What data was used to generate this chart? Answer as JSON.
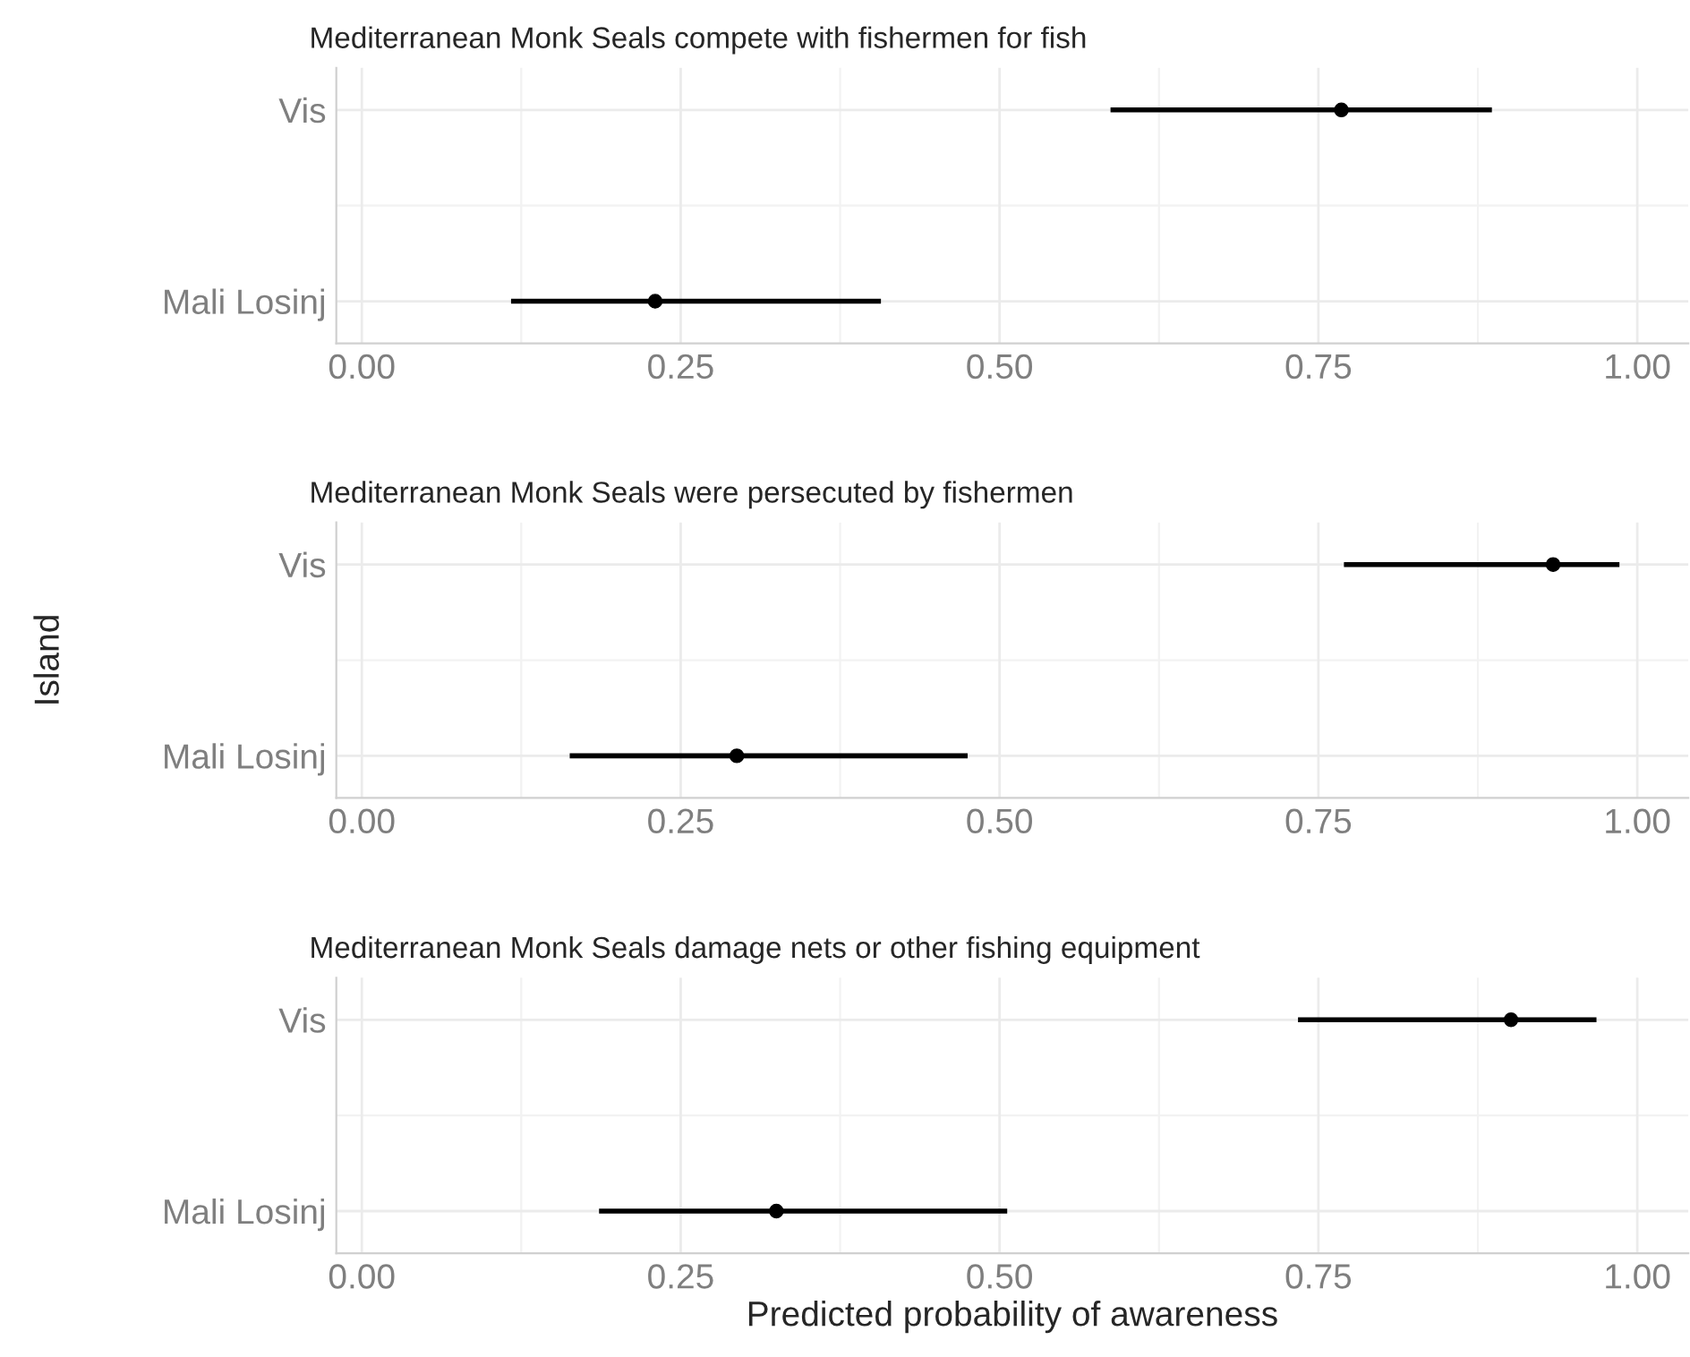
{
  "chart_data": [
    {
      "type": "scatter",
      "orientation": "horizontal",
      "title": "Mediterranean Monk Seals compete with fishermen for fish",
      "categories": [
        "Vis",
        "Mali Losinj"
      ],
      "series": [
        {
          "color": "#000000",
          "values": [
            0.768,
            0.23
          ],
          "errors": [
            [
              0.587,
              0.886
            ],
            [
              0.117,
              0.407
            ]
          ]
        }
      ],
      "xlim": [
        -0.02,
        1.04
      ],
      "xticks": [
        {
          "value": 0,
          "label": "0.00"
        },
        {
          "value": 0.25,
          "label": "0.25"
        },
        {
          "value": 0.5,
          "label": "0.50"
        },
        {
          "value": 0.75,
          "label": "0.75"
        },
        {
          "value": 1,
          "label": "1.00"
        }
      ],
      "grid": true,
      "marker": "circle"
    },
    {
      "type": "scatter",
      "orientation": "horizontal",
      "title": "Mediterranean Monk Seals were persecuted by fishermen",
      "ylabel": "Island",
      "categories": [
        "Vis",
        "Mali Losinj"
      ],
      "series": [
        {
          "color": "#000000",
          "values": [
            0.934,
            0.294
          ],
          "errors": [
            [
              0.77,
              0.986
            ],
            [
              0.163,
              0.475
            ]
          ]
        }
      ],
      "xlim": [
        -0.02,
        1.04
      ],
      "xticks": [
        {
          "value": 0,
          "label": "0.00"
        },
        {
          "value": 0.25,
          "label": "0.25"
        },
        {
          "value": 0.5,
          "label": "0.50"
        },
        {
          "value": 0.75,
          "label": "0.75"
        },
        {
          "value": 1,
          "label": "1.00"
        }
      ],
      "grid": true,
      "marker": "circle"
    },
    {
      "type": "scatter",
      "orientation": "horizontal",
      "title": "Mediterranean Monk Seals damage nets or other fishing equipment",
      "xlabel": "Predicted probability of awareness",
      "categories": [
        "Vis",
        "Mali Losinj"
      ],
      "series": [
        {
          "color": "#000000",
          "values": [
            0.901,
            0.325
          ],
          "errors": [
            [
              0.734,
              0.968
            ],
            [
              0.186,
              0.506
            ]
          ]
        }
      ],
      "xlim": [
        -0.02,
        1.04
      ],
      "xticks": [
        {
          "value": 0,
          "label": "0.00"
        },
        {
          "value": 0.25,
          "label": "0.25"
        },
        {
          "value": 0.5,
          "label": "0.50"
        },
        {
          "value": 0.75,
          "label": "0.75"
        },
        {
          "value": 1,
          "label": "1.00"
        }
      ],
      "grid": true,
      "marker": "circle"
    }
  ]
}
